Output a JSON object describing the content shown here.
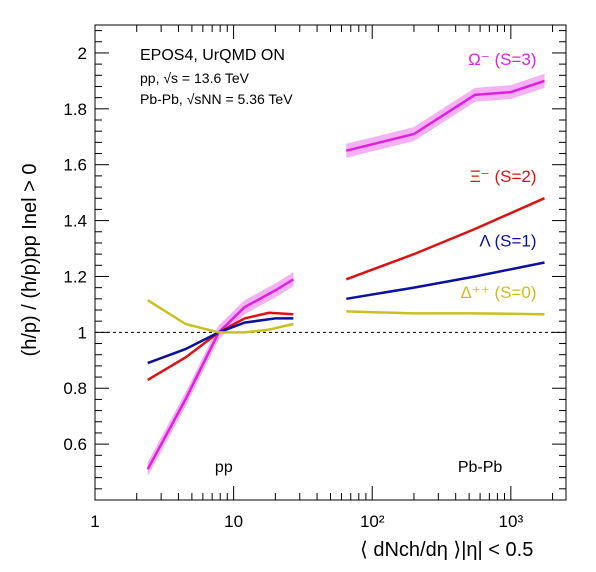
{
  "chart_data": {
    "type": "line",
    "title": "EPOS4, UrQMD ON",
    "info_lines": [
      "pp,  √s = 13.6 TeV",
      "Pb-Pb,  √sNN = 5.36 TeV"
    ],
    "ylabel": "(h/p) / (h/p)pp Inel > 0",
    "xlabel": "⟨ dNch/dη ⟩|η| < 0.5",
    "xscale": "log",
    "xlim": [
      1,
      2500
    ],
    "ylim": [
      0.4,
      2.1
    ],
    "x_ticks": [
      "1",
      "10",
      "10²",
      "10³"
    ],
    "y_ticks": [
      "0.6",
      "0.8",
      "1",
      "1.2",
      "1.4",
      "1.6",
      "1.8",
      "2"
    ],
    "reference_line": 1.0,
    "region_labels": [
      {
        "text": "pp",
        "x": 8.5,
        "y": 0.5
      },
      {
        "text": "Pb-Pb",
        "x": 600,
        "y": 0.5
      }
    ],
    "series": [
      {
        "name": "Ω⁻ (S=3)",
        "color": "#e020e0",
        "band": true,
        "pp": {
          "x": [
            2.4,
            4.5,
            7.8,
            12,
            20,
            27
          ],
          "y": [
            0.51,
            0.76,
            1.0,
            1.09,
            1.15,
            1.19
          ]
        },
        "pbpb": {
          "x": [
            65,
            200,
            550,
            1000,
            1750
          ],
          "y": [
            1.65,
            1.71,
            1.85,
            1.86,
            1.9
          ]
        }
      },
      {
        "name": "Ξ⁻ (S=2)",
        "color": "#dd1111",
        "band": false,
        "pp": {
          "x": [
            2.4,
            4.5,
            7.8,
            12,
            18,
            27
          ],
          "y": [
            0.83,
            0.91,
            1.0,
            1.05,
            1.07,
            1.065
          ]
        },
        "pbpb": {
          "x": [
            65,
            200,
            550,
            1750
          ],
          "y": [
            1.19,
            1.28,
            1.37,
            1.48
          ]
        }
      },
      {
        "name": "Λ (S=1)",
        "color": "#0a10a0",
        "band": false,
        "pp": {
          "x": [
            2.4,
            4.5,
            7.8,
            12,
            20,
            27
          ],
          "y": [
            0.89,
            0.94,
            1.0,
            1.035,
            1.05,
            1.05
          ]
        },
        "pbpb": {
          "x": [
            65,
            200,
            550,
            1750
          ],
          "y": [
            1.12,
            1.16,
            1.2,
            1.25
          ]
        }
      },
      {
        "name": "Δ⁺⁺ (S=0)",
        "color": "#c8c020",
        "band": false,
        "pp": {
          "x": [
            2.4,
            4.5,
            7.8,
            12,
            18,
            27
          ],
          "y": [
            1.115,
            1.03,
            1.0,
            1.0,
            1.01,
            1.03
          ]
        },
        "pbpb": {
          "x": [
            65,
            200,
            550,
            1750
          ],
          "y": [
            1.075,
            1.068,
            1.068,
            1.065
          ]
        }
      }
    ]
  }
}
